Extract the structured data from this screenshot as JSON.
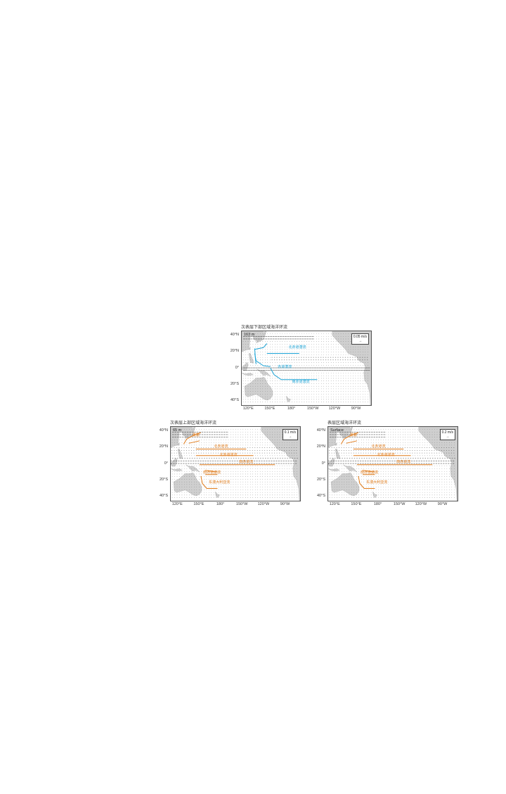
{
  "panels": [
    {
      "id": "top",
      "title": "次表层下部区域海洋环流",
      "depth": "163 m",
      "scale": "0.05 m/s",
      "scale_arrow": "→",
      "lat_ticks": [
        "40°N",
        "20°N",
        "0°",
        "20°S",
        "40°S"
      ],
      "lon_ticks": [
        "120°E",
        "150°E",
        "180°",
        "150°W",
        "120°W",
        "90°W"
      ],
      "current_color": "#1ba3d6",
      "current_labels": [
        "北赤道潜流",
        "赤道潜流",
        "南赤道潜流"
      ]
    },
    {
      "id": "left",
      "title": "次表层上部区域海洋环流",
      "depth": "65 m",
      "scale": "0.1 m/s",
      "scale_arrow": "→",
      "lat_ticks": [
        "40°N",
        "20°N",
        "0°",
        "20°S",
        "40°S"
      ],
      "lon_ticks": [
        "120°E",
        "150°E",
        "180°",
        "150°W",
        "120°W",
        "90°W"
      ],
      "current_color": "#e07b1a",
      "current_labels": [
        "黑潮",
        "北赤道流",
        "北赤道逆流",
        "南赤道流",
        "南赤道逆流",
        "东澳大利亚流"
      ]
    },
    {
      "id": "right",
      "title": "表层区域海洋环流",
      "depth": "Surface",
      "scale": "0.2 m/s",
      "scale_arrow": "→",
      "lat_ticks": [
        "40°N",
        "20°N",
        "0°",
        "20°S",
        "40°S"
      ],
      "lon_ticks": [
        "120°E",
        "150°E",
        "180°",
        "150°W",
        "120°W",
        "90°W"
      ],
      "current_color": "#e07b1a",
      "current_labels": [
        "黑潮",
        "北赤道流",
        "北赤道逆流",
        "南赤道流",
        "南赤道逆流",
        "东澳大利亚流"
      ]
    }
  ]
}
